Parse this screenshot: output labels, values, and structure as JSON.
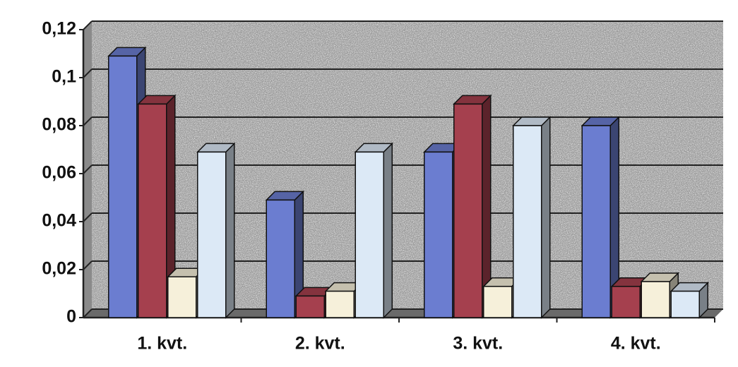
{
  "chart_data": {
    "type": "bar3d",
    "categories": [
      "1. kvt.",
      "2. kvt.",
      "3. kvt.",
      "4. kvt."
    ],
    "series": [
      {
        "color": "#6b7dd0",
        "values": [
          0.109,
          0.049,
          0.069,
          0.08
        ]
      },
      {
        "color": "#a5404e",
        "values": [
          0.089,
          0.009,
          0.089,
          0.013
        ]
      },
      {
        "color": "#f6f0da",
        "values": [
          0.017,
          0.011,
          0.013,
          0.015
        ]
      },
      {
        "color": "#dce9f6",
        "values": [
          0.069,
          0.069,
          0.08,
          0.011
        ]
      }
    ],
    "ylim": [
      0,
      0.12
    ],
    "yticks": [
      0,
      {
        "value": 0.02,
        "label": "0,02"
      },
      {
        "value": 0.04,
        "label": "0,04"
      },
      {
        "value": 0.06,
        "label": "0,06"
      },
      {
        "value": 0.08,
        "label": "0,08"
      },
      {
        "value": 0.1,
        "label": "0,1"
      },
      {
        "value": 0.12,
        "label": "0,12"
      }
    ],
    "grid": true
  }
}
